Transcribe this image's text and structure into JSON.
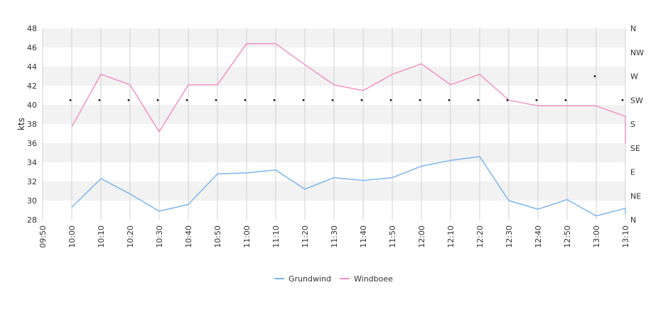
{
  "chart_data": {
    "type": "line",
    "ylabel": "kts",
    "ylim": [
      28,
      48
    ],
    "yticks": [
      "28",
      "30",
      "32",
      "34",
      "36",
      "38",
      "40",
      "42",
      "44",
      "46",
      "48"
    ],
    "y2ticks": [
      "N",
      "NE",
      "E",
      "SE",
      "S",
      "SW",
      "W",
      "NW",
      "N"
    ],
    "x": [
      "09:50",
      "10:00",
      "10:10",
      "10:20",
      "10:30",
      "10:40",
      "10:50",
      "11:00",
      "11:10",
      "11:20",
      "11:30",
      "11:40",
      "11:50",
      "12:00",
      "12:10",
      "12:20",
      "12:30",
      "12:40",
      "12:50",
      "13:00",
      "13:10"
    ],
    "grid": true,
    "legend_position": "bottom",
    "series": [
      {
        "name": "Grundwind",
        "color": "#7cb5ec",
        "values": [
          null,
          29.3,
          32.3,
          30.7,
          28.9,
          29.6,
          32.8,
          32.9,
          33.2,
          31.2,
          32.4,
          32.1,
          32.4,
          33.6,
          34.2,
          34.6,
          30.0,
          29.1,
          30.1,
          28.4,
          29.2
        ],
        "end_value": 28.6
      },
      {
        "name": "Windboee",
        "color": "#f192c4",
        "values": [
          null,
          37.7,
          43.2,
          42.1,
          37.2,
          42.1,
          42.1,
          46.4,
          46.4,
          44.2,
          42.1,
          41.5,
          43.2,
          44.3,
          42.1,
          43.2,
          40.5,
          39.9,
          39.9,
          39.9,
          38.8
        ],
        "end_value": 36.0
      }
    ],
    "direction_markers": {
      "color": "#111111",
      "values": [
        null,
        "SW",
        "SW",
        "SW",
        "SW",
        "SW",
        "SW",
        "SW",
        "SW",
        "SW",
        "SW",
        "SW",
        "SW",
        "SW",
        "SW",
        "SW",
        "SW",
        "SW",
        "SW",
        "W",
        "SW"
      ]
    }
  }
}
